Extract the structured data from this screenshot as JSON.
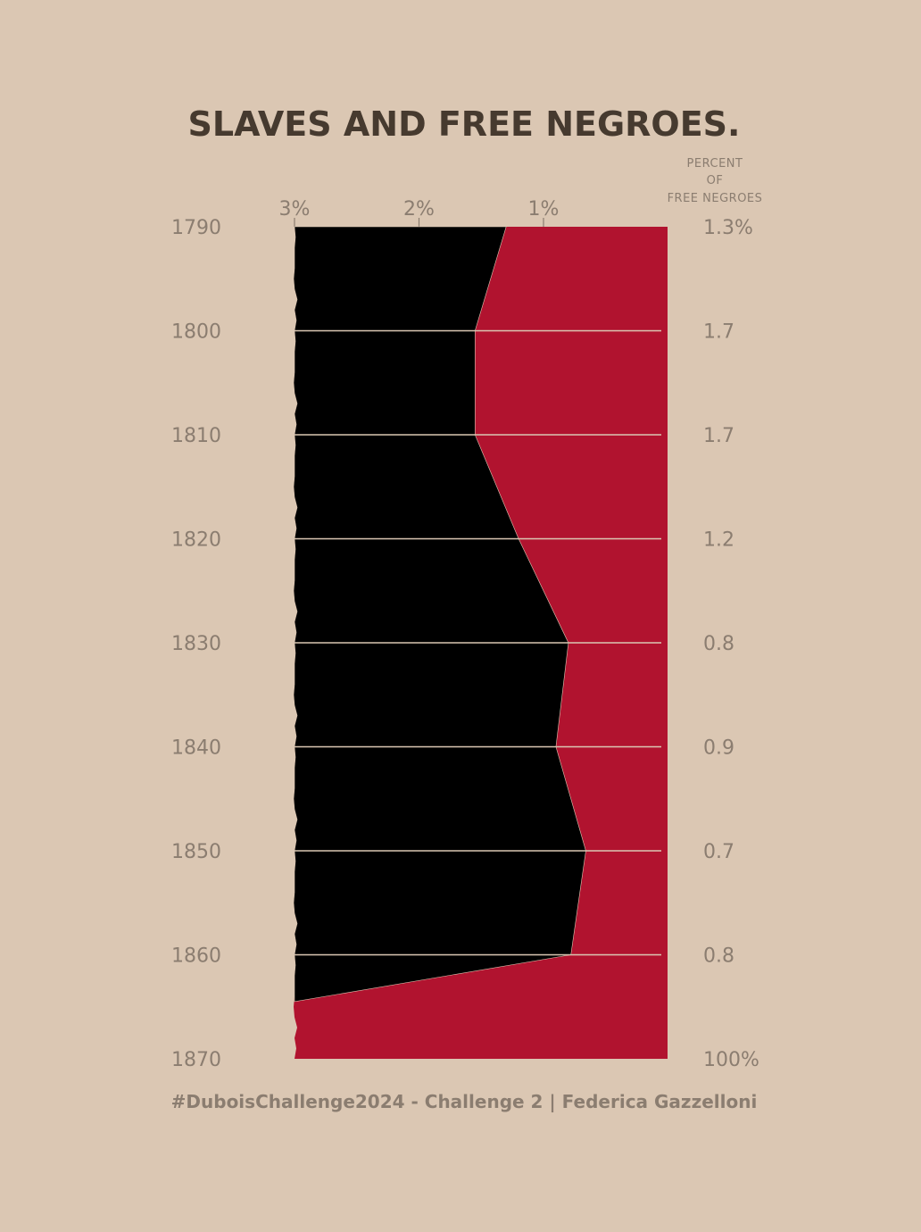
{
  "chart_data": {
    "type": "area",
    "title": "SLAVES AND FREE NEGROES.",
    "right_header": [
      "PERCENT",
      "OF",
      "FREE NEGROES"
    ],
    "x_axis_ticks": [
      {
        "label": "3%",
        "value": 3
      },
      {
        "label": "2%",
        "value": 2
      },
      {
        "label": "1%",
        "value": 1
      }
    ],
    "xlim": [
      3,
      0
    ],
    "years": [
      "1790",
      "1800",
      "1810",
      "1820",
      "1830",
      "1840",
      "1850",
      "1860",
      "1870"
    ],
    "percent_labels": [
      "1.3%",
      "1.7",
      "1.7",
      "1.2",
      "0.8",
      "0.9",
      "0.7",
      "0.8",
      "100%"
    ],
    "free_percent": [
      1.3,
      1.7,
      1.7,
      1.2,
      0.8,
      0.9,
      0.7,
      0.8,
      100
    ],
    "boundary": [
      {
        "year": 1790,
        "percent": 1.3
      },
      {
        "year": 1800,
        "percent": 1.55
      },
      {
        "year": 1810,
        "percent": 1.55
      },
      {
        "year": 1820,
        "percent": 1.2
      },
      {
        "year": 1830,
        "percent": 0.8
      },
      {
        "year": 1840,
        "percent": 0.9
      },
      {
        "year": 1850,
        "percent": 0.66
      },
      {
        "year": 1860,
        "percent": 0.78
      },
      {
        "year": 1864.5,
        "percent": 3
      }
    ],
    "series": [
      {
        "color": "#000000"
      },
      {
        "color": "#b1132f"
      }
    ],
    "grid": true
  },
  "credit": "#DuboisChallenge2024 - Challenge 2 | Federica Gazzelloni",
  "colors": {
    "background": "#dbc7b3",
    "slaves": "#000000",
    "free": "#b1132f",
    "gridline": "#dbc7b3",
    "text": "#8b7d70",
    "title": "#463a2f"
  }
}
